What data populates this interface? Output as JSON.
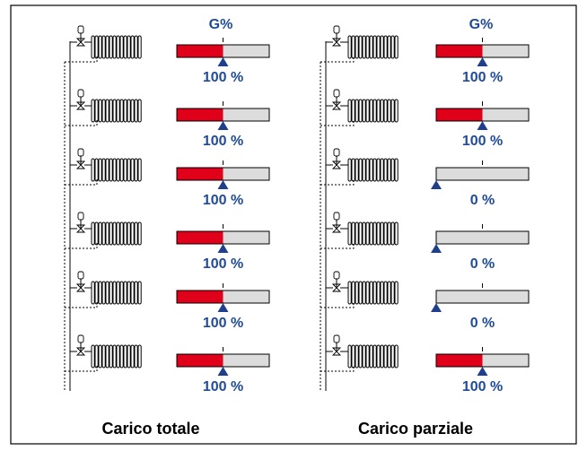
{
  "colors": {
    "fill": "#e0001a",
    "bar_bg": "#dcdcdc",
    "marker": "#1f3f8c",
    "label": "#1f4b99"
  },
  "icons": [
    "radiator-icon",
    "thermostatic-valve-icon",
    "pointer-triangle-icon"
  ],
  "columns": [
    {
      "header": "G%",
      "caption": "Carico totale",
      "rows": [
        {
          "level": 100,
          "label": "100 %"
        },
        {
          "level": 100,
          "label": "100 %"
        },
        {
          "level": 100,
          "label": "100 %"
        },
        {
          "level": 100,
          "label": "100 %"
        },
        {
          "level": 100,
          "label": "100 %"
        },
        {
          "level": 100,
          "label": "100 %"
        }
      ]
    },
    {
      "header": "G%",
      "caption": "Carico parziale",
      "rows": [
        {
          "level": 100,
          "label": "100 %"
        },
        {
          "level": 100,
          "label": "100 %"
        },
        {
          "level": 0,
          "label": "0 %"
        },
        {
          "level": 0,
          "label": "0 %"
        },
        {
          "level": 0,
          "label": "0 %"
        },
        {
          "level": 100,
          "label": "100 %"
        }
      ]
    }
  ]
}
